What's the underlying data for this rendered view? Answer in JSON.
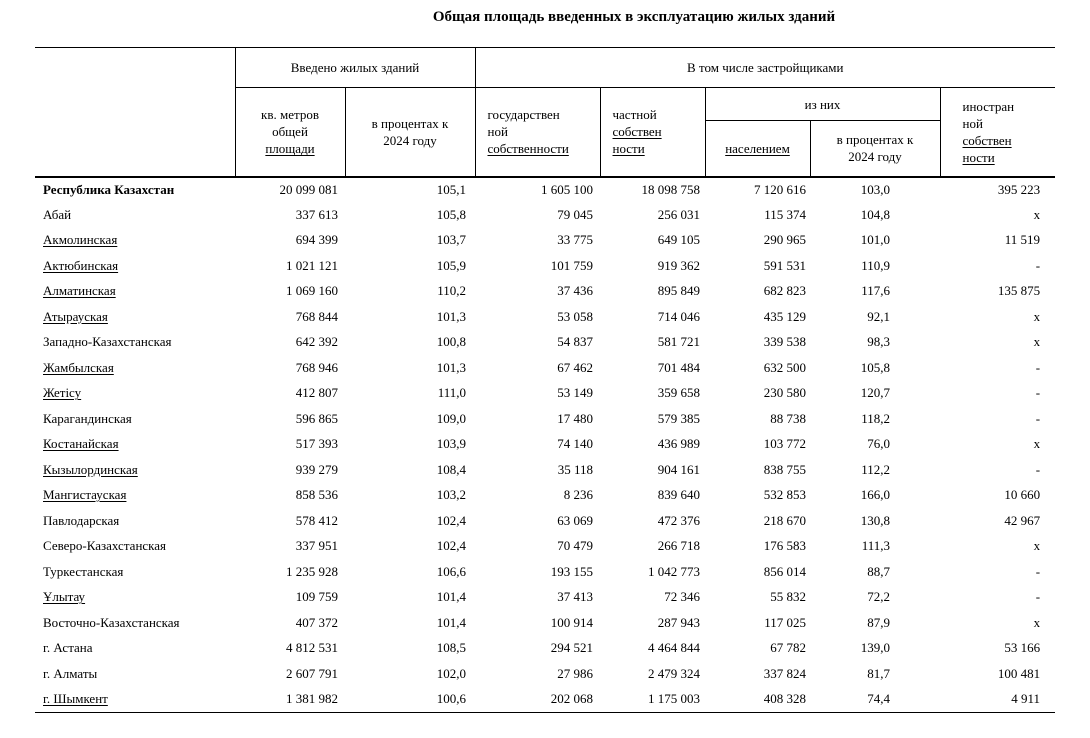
{
  "title": "Общая площадь введенных в эксплуатацию жилых зданий",
  "colors": {
    "text": "#000000",
    "border": "#000000",
    "background": "#ffffff"
  },
  "table": {
    "header": {
      "region_corner": {
        "lines": []
      },
      "group_introduced": {
        "lines": [
          {
            "t": "Введено жилых зданий",
            "u": false
          }
        ]
      },
      "group_developers": {
        "lines": [
          {
            "t": "В том числе застройщиками",
            "u": false
          }
        ]
      },
      "col_sqm": {
        "lines": [
          {
            "t": "кв. метров",
            "u": false
          },
          {
            "t": "общей",
            "u": false
          },
          {
            "t": "площади",
            "u": true
          }
        ]
      },
      "col_pct_2024": {
        "lines": [
          {
            "t": "в процентах к",
            "u": false
          },
          {
            "t": "2024 году",
            "u": false
          }
        ]
      },
      "col_state": {
        "lines": [
          {
            "t": "государствен",
            "u": false
          },
          {
            "t": "ной",
            "u": false
          },
          {
            "t": "собственности",
            "u": true
          }
        ]
      },
      "col_private": {
        "lines": [
          {
            "t": "частной",
            "u": false
          },
          {
            "t": "собствен",
            "u": true
          },
          {
            "t": "ности",
            "u": true
          }
        ]
      },
      "group_of_them": {
        "lines": [
          {
            "t": "из них",
            "u": false
          }
        ]
      },
      "col_population": {
        "lines": [
          {
            "t": "населением",
            "u": true
          }
        ]
      },
      "col_pct_2024_b": {
        "lines": [
          {
            "t": "в процентах к",
            "u": false
          },
          {
            "t": "2024 году",
            "u": false
          }
        ]
      },
      "col_foreign": {
        "lines": [
          {
            "t": "иностран",
            "u": false
          },
          {
            "t": "ной",
            "u": false
          },
          {
            "t": "собствен",
            "u": true
          },
          {
            "t": "ности",
            "u": true
          }
        ]
      }
    },
    "rows": [
      {
        "region": "Республика Казахстан",
        "bold": true,
        "u": false,
        "values": [
          "20 099 081",
          "105,1",
          "1 605 100",
          "18 098 758",
          "7 120 616",
          "103,0",
          "395 223"
        ]
      },
      {
        "region": "Абай",
        "bold": false,
        "u": false,
        "values": [
          "337 613",
          "105,8",
          "79 045",
          "256 031",
          "115 374",
          "104,8",
          "x"
        ]
      },
      {
        "region": "Акмолинская",
        "bold": false,
        "u": true,
        "values": [
          "694 399",
          "103,7",
          "33 775",
          "649 105",
          "290 965",
          "101,0",
          "11 519"
        ]
      },
      {
        "region": "Актюбинская",
        "bold": false,
        "u": true,
        "values": [
          "1 021 121",
          "105,9",
          "101 759",
          "919 362",
          "591 531",
          "110,9",
          "-"
        ]
      },
      {
        "region": "Алматинская",
        "bold": false,
        "u": true,
        "values": [
          "1 069 160",
          "110,2",
          "37 436",
          "895 849",
          "682 823",
          "117,6",
          "135 875"
        ]
      },
      {
        "region": "Атырауская",
        "bold": false,
        "u": true,
        "values": [
          "768 844",
          "101,3",
          "53 058",
          "714 046",
          "435 129",
          "92,1",
          "x"
        ]
      },
      {
        "region": "Западно-Казахстанская",
        "bold": false,
        "u": false,
        "values": [
          "642 392",
          "100,8",
          "54 837",
          "581 721",
          "339 538",
          "98,3",
          "x"
        ]
      },
      {
        "region": "Жамбылская",
        "bold": false,
        "u": true,
        "values": [
          "768 946",
          "101,3",
          "67 462",
          "701 484",
          "632 500",
          "105,8",
          "-"
        ]
      },
      {
        "region": "Жетісу",
        "bold": false,
        "u": true,
        "values": [
          "412 807",
          "111,0",
          "53 149",
          "359 658",
          "230 580",
          "120,7",
          "-"
        ]
      },
      {
        "region": "Карагандинская",
        "bold": false,
        "u": false,
        "values": [
          "596 865",
          "109,0",
          "17 480",
          "579 385",
          "88 738",
          "118,2",
          "-"
        ]
      },
      {
        "region": "Костанайская",
        "bold": false,
        "u": true,
        "values": [
          "517 393",
          "103,9",
          "74 140",
          "436 989",
          "103 772",
          "76,0",
          "x"
        ]
      },
      {
        "region": "Кызылординская",
        "bold": false,
        "u": true,
        "values": [
          "939 279",
          "108,4",
          "35 118",
          "904 161",
          "838 755",
          "112,2",
          "-"
        ]
      },
      {
        "region": "Мангистауская",
        "bold": false,
        "u": true,
        "values": [
          "858 536",
          "103,2",
          "8 236",
          "839 640",
          "532 853",
          "166,0",
          "10 660"
        ]
      },
      {
        "region": "Павлодарская",
        "bold": false,
        "u": false,
        "values": [
          "578 412",
          "102,4",
          "63 069",
          "472 376",
          "218 670",
          "130,8",
          "42 967"
        ]
      },
      {
        "region": "Северо-Казахстанская",
        "bold": false,
        "u": false,
        "values": [
          "337 951",
          "102,4",
          "70 479",
          "266 718",
          "176 583",
          "111,3",
          "x"
        ]
      },
      {
        "region": "Туркестанская",
        "bold": false,
        "u": false,
        "values": [
          "1 235 928",
          "106,6",
          "193 155",
          "1 042 773",
          "856 014",
          "88,7",
          "-"
        ]
      },
      {
        "region": "Ұлытау",
        "bold": false,
        "u": true,
        "values": [
          "109 759",
          "101,4",
          "37 413",
          "72 346",
          "55 832",
          "72,2",
          "-"
        ]
      },
      {
        "region": "Восточно-Казахстанская",
        "bold": false,
        "u": false,
        "values": [
          "407 372",
          "101,4",
          "100 914",
          "287 943",
          "117 025",
          "87,9",
          "x"
        ]
      },
      {
        "region": "г. Астана",
        "bold": false,
        "u": false,
        "values": [
          "4 812 531",
          "108,5",
          "294 521",
          "4 464 844",
          "67 782",
          "139,0",
          "53 166"
        ]
      },
      {
        "region": "г. Алматы",
        "bold": false,
        "u": false,
        "values": [
          "2 607 791",
          "102,0",
          "27 986",
          "2 479 324",
          "337 824",
          "81,7",
          "100 481"
        ]
      },
      {
        "region": "г. Шымкент",
        "bold": false,
        "u": true,
        "values": [
          "1 381 982",
          "100,6",
          "202 068",
          "1 175 003",
          "408 328",
          "74,4",
          "4 911"
        ]
      }
    ]
  }
}
